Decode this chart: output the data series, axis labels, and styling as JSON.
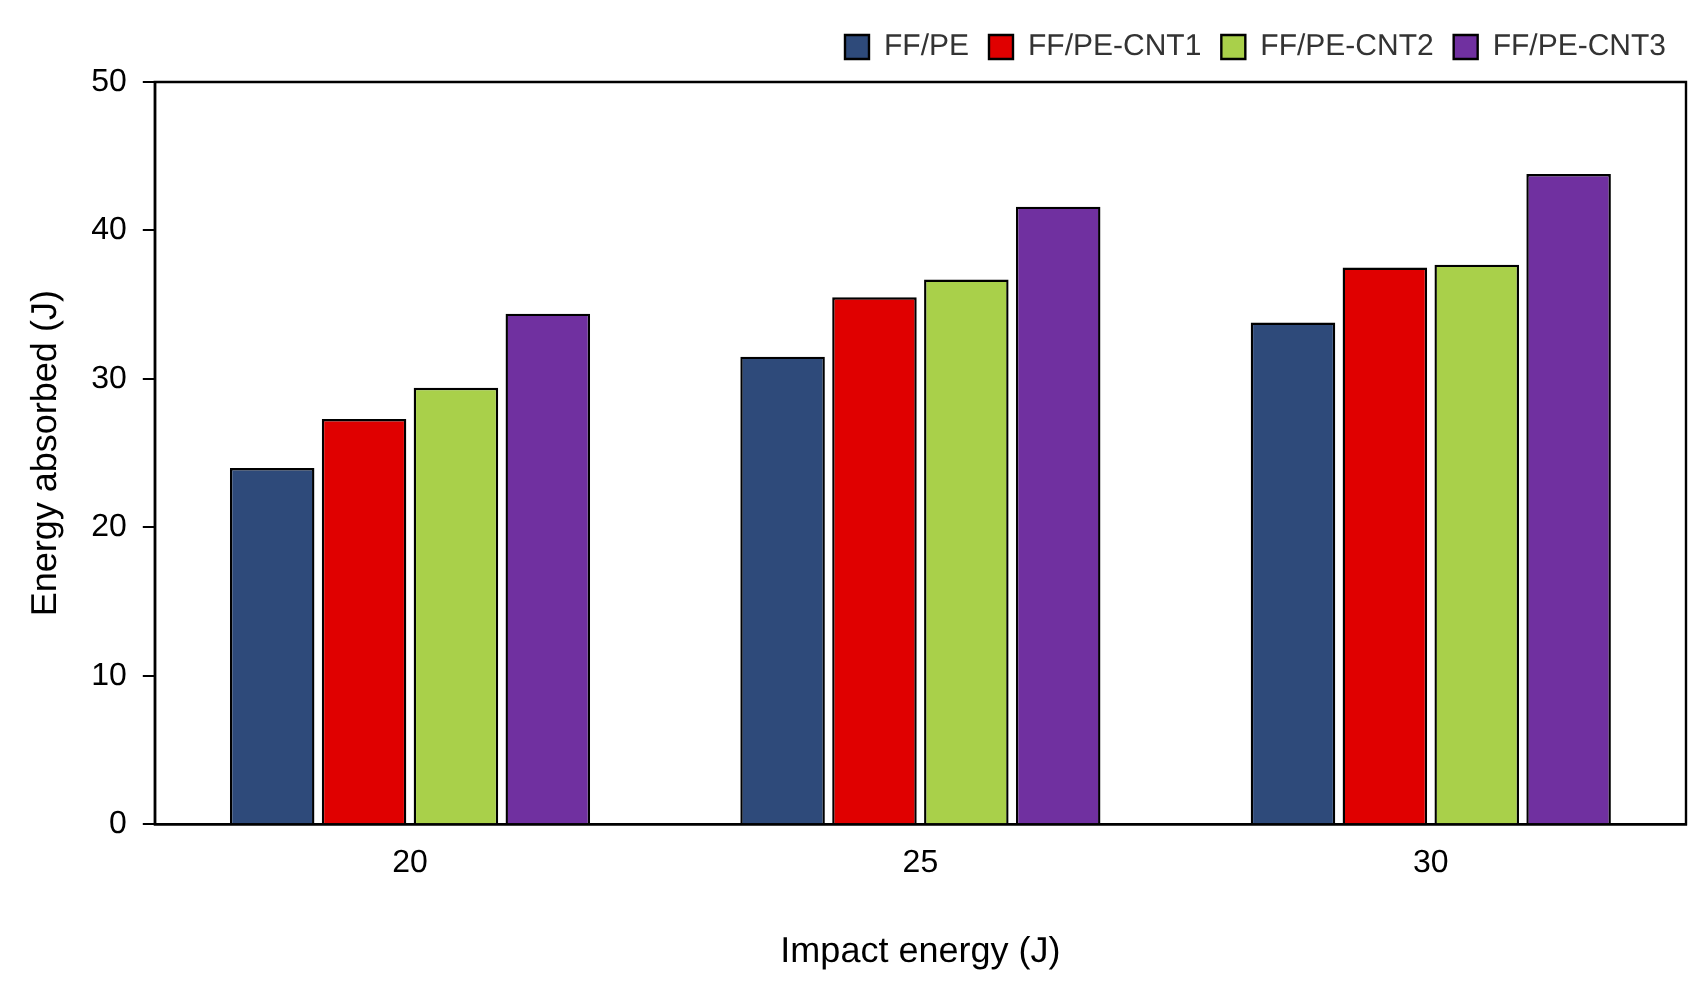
{
  "chart_data": {
    "type": "bar",
    "xlabel": "Impact energy (J)",
    "ylabel": "Energy absorbed (J)",
    "categories": [
      "20",
      "25",
      "30"
    ],
    "series": [
      {
        "name": "FF/PE",
        "color": "#2e4a7a",
        "values": [
          24.0,
          31.5,
          33.8
        ]
      },
      {
        "name": "FF/PE-CNT1",
        "color": "#e00000",
        "values": [
          27.3,
          35.5,
          37.5
        ]
      },
      {
        "name": "FF/PE-CNT2",
        "color": "#a9d04a",
        "values": [
          29.4,
          36.7,
          37.7
        ]
      },
      {
        "name": "FF/PE-CNT3",
        "color": "#7030a0",
        "values": [
          34.4,
          41.6,
          43.8
        ]
      }
    ],
    "ylim": [
      0,
      50
    ],
    "yticks": [
      0,
      10,
      20,
      30,
      40,
      50
    ],
    "grid": false,
    "legend": "top right"
  }
}
